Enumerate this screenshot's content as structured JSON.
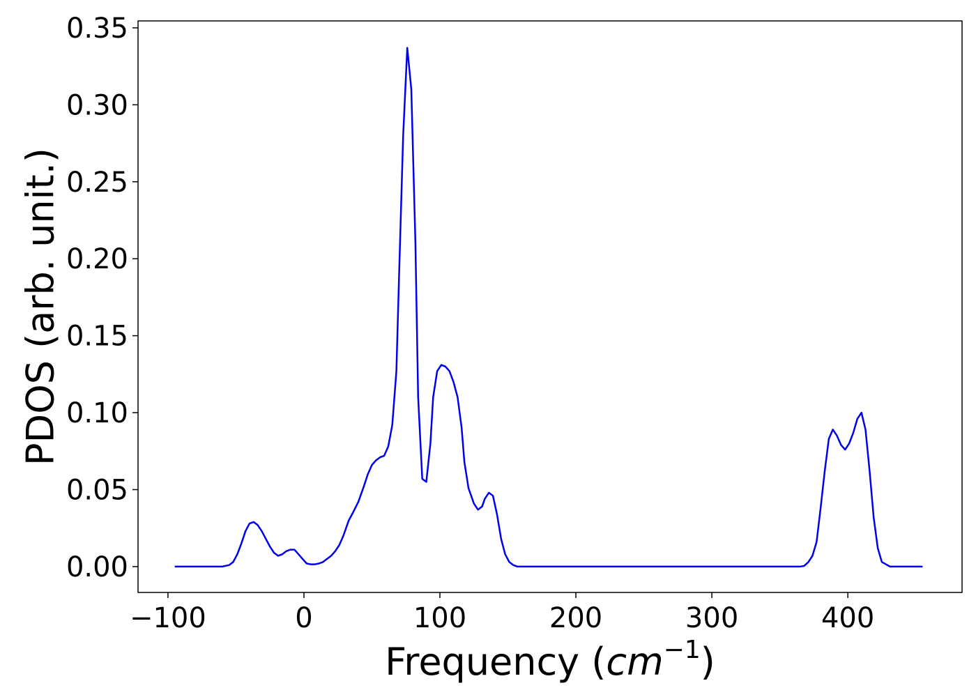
{
  "chart_data": {
    "type": "line",
    "xlabel": [
      "Frequency (",
      "cm",
      "−1",
      ")"
    ],
    "ylabel": "PDOS (arb. unit.)",
    "xlim": [
      -122,
      484
    ],
    "ylim": [
      -0.0168,
      0.3545
    ],
    "xticks": [
      {
        "value": -100,
        "label": "−100"
      },
      0,
      100,
      200,
      300,
      400
    ],
    "yticks": [
      {
        "value": 0,
        "label": "0.00"
      },
      {
        "value": 0.05,
        "label": "0.05"
      },
      {
        "value": 0.1,
        "label": "0.10"
      },
      {
        "value": 0.15,
        "label": "0.15"
      },
      {
        "value": 0.2,
        "label": "0.20"
      },
      {
        "value": 0.25,
        "label": "0.25"
      },
      {
        "value": 0.3,
        "label": "0.30"
      },
      {
        "value": 0.35,
        "label": "0.35"
      }
    ],
    "grid": false,
    "series": [
      {
        "name": "PDOS",
        "color": "#0000ee",
        "x": [
          -95,
          -60,
          -55,
          -52,
          -49,
          -46,
          -43,
          -40,
          -37,
          -34,
          -31,
          -28,
          -25,
          -22,
          -19,
          -16,
          -13,
          -10,
          -7,
          -4,
          -1,
          2,
          5,
          8,
          11,
          14,
          17,
          20,
          23,
          26,
          29,
          33,
          36,
          40,
          44,
          47,
          50,
          53,
          56,
          59,
          62,
          65,
          68,
          70,
          73,
          76,
          79,
          82,
          84,
          87,
          90,
          93,
          95,
          98,
          101,
          104,
          107,
          110,
          113,
          116,
          118,
          121,
          125,
          128,
          131,
          133,
          136,
          139,
          142,
          145,
          148,
          151,
          154,
          157,
          365,
          368,
          371,
          374,
          377,
          380,
          383,
          386,
          389,
          392,
          395,
          398,
          401,
          404,
          407,
          410,
          413,
          416,
          419,
          422,
          425,
          431,
          455
        ],
        "values": [
          0,
          0,
          0.001,
          0.003,
          0.008,
          0.015,
          0.023,
          0.028,
          0.029,
          0.027,
          0.023,
          0.018,
          0.013,
          0.009,
          0.007,
          0.008,
          0.01,
          0.011,
          0.011,
          0.008,
          0.005,
          0.002,
          0.0015,
          0.0015,
          0.002,
          0.003,
          0.005,
          0.007,
          0.01,
          0.014,
          0.02,
          0.03,
          0.035,
          0.042,
          0.052,
          0.06,
          0.066,
          0.069,
          0.071,
          0.072,
          0.078,
          0.092,
          0.127,
          0.19,
          0.28,
          0.337,
          0.31,
          0.21,
          0.11,
          0.057,
          0.055,
          0.08,
          0.11,
          0.127,
          0.131,
          0.13,
          0.127,
          0.12,
          0.11,
          0.09,
          0.068,
          0.051,
          0.041,
          0.037,
          0.039,
          0.044,
          0.048,
          0.046,
          0.034,
          0.018,
          0.008,
          0.003,
          0.001,
          0,
          0,
          0.0005,
          0.003,
          0.007,
          0.016,
          0.038,
          0.062,
          0.083,
          0.089,
          0.085,
          0.079,
          0.076,
          0.08,
          0.087,
          0.096,
          0.1,
          0.089,
          0.062,
          0.032,
          0.012,
          0.003,
          0,
          0
        ]
      }
    ]
  }
}
